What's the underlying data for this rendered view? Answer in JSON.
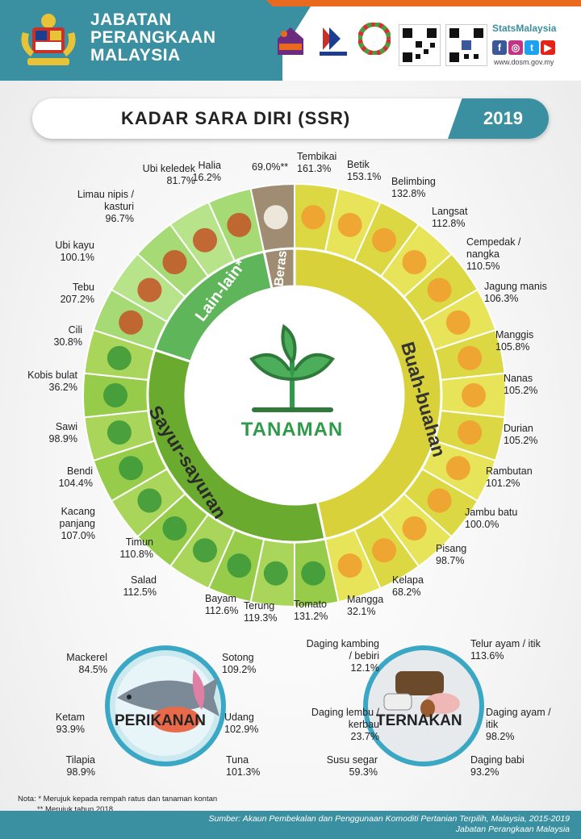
{
  "header": {
    "agency_line1": "JABATAN",
    "agency_line2": "PERANGKAAN",
    "agency_line3": "MALAYSIA",
    "brand": "StatsMalaysia",
    "website": "www.dosm.gov.my",
    "social": {
      "facebook": "f",
      "instagram": "◎",
      "twitter": "t",
      "youtube": "▶"
    }
  },
  "title": "KADAR SARA DIRI (SSR)",
  "year": "2019",
  "tanaman": {
    "center_label": "TANAMAN",
    "sections": {
      "buah": "Buah-buahan",
      "sayur": "Sayur-sayuran",
      "lain": "Lain-lain*",
      "beras": "Beras"
    },
    "crops": [
      {
        "group": "beras",
        "name": "",
        "value": "69.0%**",
        "icon": "rice-icon"
      },
      {
        "group": "buah",
        "name": "Tembikai",
        "value": "161.3%",
        "icon": "watermelon-icon"
      },
      {
        "group": "buah",
        "name": "Betik",
        "value": "153.1%",
        "icon": "papaya-icon"
      },
      {
        "group": "buah",
        "name": "Belimbing",
        "value": "132.8%",
        "icon": "starfruit-icon"
      },
      {
        "group": "buah",
        "name": "Langsat",
        "value": "112.8%",
        "icon": "langsat-icon"
      },
      {
        "group": "buah",
        "name": "Cempedak / nangka",
        "value": "110.5%",
        "icon": "jackfruit-icon"
      },
      {
        "group": "buah",
        "name": "Jagung manis",
        "value": "106.3%",
        "icon": "corn-icon"
      },
      {
        "group": "buah",
        "name": "Manggis",
        "value": "105.8%",
        "icon": "mangosteen-icon"
      },
      {
        "group": "buah",
        "name": "Nanas",
        "value": "105.2%",
        "icon": "pineapple-icon"
      },
      {
        "group": "buah",
        "name": "Durian",
        "value": "105.2%",
        "icon": "durian-icon"
      },
      {
        "group": "buah",
        "name": "Rambutan",
        "value": "101.2%",
        "icon": "rambutan-icon"
      },
      {
        "group": "buah",
        "name": "Jambu batu",
        "value": "100.0%",
        "icon": "guava-icon"
      },
      {
        "group": "buah",
        "name": "Pisang",
        "value": "98.7%",
        "icon": "banana-icon"
      },
      {
        "group": "buah",
        "name": "Kelapa",
        "value": "68.2%",
        "icon": "coconut-icon"
      },
      {
        "group": "buah",
        "name": "Mangga",
        "value": "32.1%",
        "icon": "mango-icon"
      },
      {
        "group": "sayur",
        "name": "Tomato",
        "value": "131.2%",
        "icon": "tomato-icon"
      },
      {
        "group": "sayur",
        "name": "Terung",
        "value": "119.3%",
        "icon": "eggplant-icon"
      },
      {
        "group": "sayur",
        "name": "Bayam",
        "value": "112.6%",
        "icon": "spinach-icon"
      },
      {
        "group": "sayur",
        "name": "Salad",
        "value": "112.5%",
        "icon": "lettuce-icon"
      },
      {
        "group": "sayur",
        "name": "Timun",
        "value": "110.8%",
        "icon": "cucumber-icon"
      },
      {
        "group": "sayur",
        "name": "Kacang panjang",
        "value": "107.0%",
        "icon": "long-bean-icon"
      },
      {
        "group": "sayur",
        "name": "Bendi",
        "value": "104.4%",
        "icon": "okra-icon"
      },
      {
        "group": "sayur",
        "name": "Sawi",
        "value": "98.9%",
        "icon": "mustard-greens-icon"
      },
      {
        "group": "sayur",
        "name": "Kobis bulat",
        "value": "36.2%",
        "icon": "cabbage-icon"
      },
      {
        "group": "sayur",
        "name": "Cili",
        "value": "30.8%",
        "icon": "chili-icon"
      },
      {
        "group": "lain",
        "name": "Tebu",
        "value": "207.2%",
        "icon": "sugarcane-icon"
      },
      {
        "group": "lain",
        "name": "Ubi kayu",
        "value": "100.1%",
        "icon": "cassava-icon"
      },
      {
        "group": "lain",
        "name": "Limau nipis / kasturi",
        "value": "96.7%",
        "icon": "lime-icon"
      },
      {
        "group": "lain",
        "name": "Ubi keledek",
        "value": "81.7%",
        "icon": "sweet-potato-icon"
      },
      {
        "group": "lain",
        "name": "Halia",
        "value": "16.2%",
        "icon": "ginger-icon"
      }
    ]
  },
  "perikanan": {
    "title": "PERIKANAN",
    "items": [
      {
        "name": "Mackerel",
        "value": "84.5%"
      },
      {
        "name": "Ketam",
        "value": "93.9%"
      },
      {
        "name": "Tilapia",
        "value": "98.9%"
      },
      {
        "name": "Sotong",
        "value": "109.2%"
      },
      {
        "name": "Udang",
        "value": "102.9%"
      },
      {
        "name": "Tuna",
        "value": "101.3%"
      }
    ]
  },
  "ternakan": {
    "title": "TERNAKAN",
    "items": [
      {
        "name": "Daging kambing / bebiri",
        "value": "12.1%"
      },
      {
        "name": "Daging lembu / kerbau",
        "value": "23.7%"
      },
      {
        "name": "Susu segar",
        "value": "59.3%"
      },
      {
        "name": "Telur ayam / itik",
        "value": "113.6%"
      },
      {
        "name": "Daging ayam / itik",
        "value": "98.2%"
      },
      {
        "name": "Daging babi",
        "value": "93.2%"
      }
    ]
  },
  "colors": {
    "brand_teal": "#3a8fa0",
    "accent_orange": "#e96a1f",
    "buah": "#d9d13a",
    "sayur": "#7bbf3a",
    "lain": "#5fb65a",
    "beras": "#a08c72"
  },
  "footnote": {
    "note1": "Nota: * Merujuk kepada rempah ratus dan tanaman kontan",
    "note2": "** Merujuk tahun 2018"
  },
  "footer": {
    "source_line1": "Sumber: Akaun Pembekalan dan Penggunaan Komoditi Pertanian Terpilih, Malaysia, 2015-2019",
    "source_line2": "Jabatan Perangkaan Malaysia"
  }
}
